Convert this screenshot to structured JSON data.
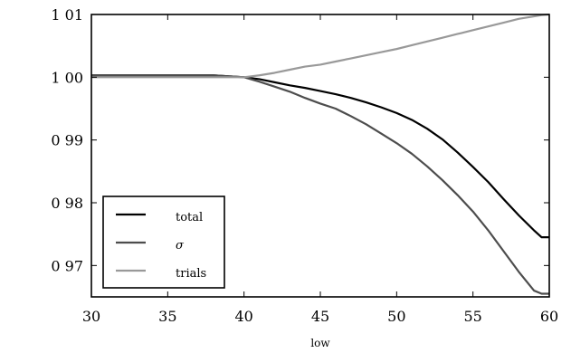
{
  "chart_data": {
    "type": "line",
    "title": "",
    "xlabel": "low",
    "ylabel": "",
    "xlim": [
      30,
      60
    ],
    "ylim": [
      0.965,
      1.01
    ],
    "x_ticks": [
      30,
      35,
      40,
      45,
      50,
      55,
      60
    ],
    "x_tick_labels": [
      "30",
      "35",
      "40",
      "45",
      "50",
      "55",
      "60"
    ],
    "y_ticks": [
      0.97,
      0.98,
      0.99,
      1.0,
      1.01
    ],
    "y_tick_labels": [
      "0 97",
      "0 98",
      "0 99",
      "1 00",
      "1 01"
    ],
    "grid": false,
    "legend_position": "bottom-left",
    "x": [
      30,
      32,
      34,
      36,
      38,
      40,
      41,
      42,
      43,
      44,
      45,
      46,
      47,
      48,
      49,
      50,
      51,
      52,
      53,
      54,
      55,
      56,
      57,
      58,
      59,
      59.5,
      60
    ],
    "series": [
      {
        "name": "total",
        "color": "#000000",
        "values": [
          1.0003,
          1.0003,
          1.0003,
          1.0003,
          1.0003,
          1.0,
          0.9997,
          0.9992,
          0.9987,
          0.9983,
          0.9978,
          0.9973,
          0.9967,
          0.996,
          0.9952,
          0.9943,
          0.9932,
          0.9918,
          0.9901,
          0.988,
          0.9857,
          0.9833,
          0.9806,
          0.978,
          0.9756,
          0.9745,
          0.9745
        ]
      },
      {
        "name": "σ",
        "color": "#4d4d4d",
        "values": [
          1.0003,
          1.0003,
          1.0003,
          1.0003,
          1.0003,
          1.0,
          0.9993,
          0.9985,
          0.9977,
          0.9967,
          0.9958,
          0.995,
          0.9938,
          0.9925,
          0.991,
          0.9895,
          0.9878,
          0.9858,
          0.9836,
          0.9812,
          0.9786,
          0.9756,
          0.9723,
          0.969,
          0.966,
          0.9655,
          0.9655
        ]
      },
      {
        "name": "trials",
        "color": "#999999",
        "values": [
          1.0,
          1.0,
          1.0,
          1.0,
          1.0,
          1.0,
          1.0003,
          1.0007,
          1.0012,
          1.0017,
          1.002,
          1.0025,
          1.003,
          1.0035,
          1.004,
          1.0045,
          1.0051,
          1.0057,
          1.0063,
          1.0069,
          1.0075,
          1.0081,
          1.0087,
          1.0093,
          1.0097,
          1.0099,
          1.01
        ]
      }
    ]
  }
}
